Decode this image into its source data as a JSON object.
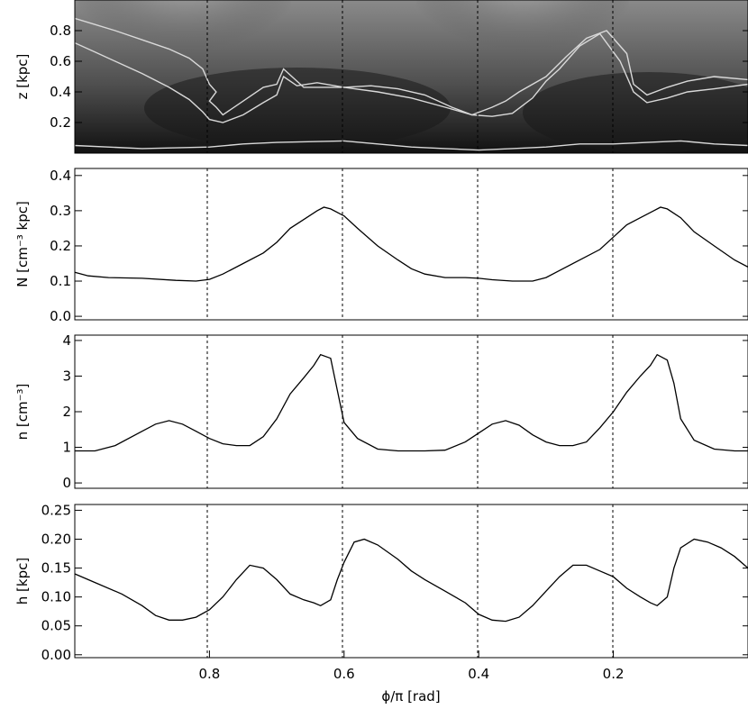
{
  "chart_data": [
    {
      "type": "heatmap",
      "panel": "top",
      "ylabel": "z [kpc]",
      "yticks": [
        "0.2",
        "0.4",
        "0.6",
        "0.8"
      ],
      "ytick_values": [
        0.2,
        0.4,
        0.6,
        0.8
      ],
      "ylim": [
        0.0,
        1.0
      ],
      "xlim": [
        1.0,
        0.0
      ],
      "dashed_x": [
        0.8,
        0.6,
        0.4,
        0.2
      ],
      "colormap": "grayscale",
      "contour_color": "#d9d9d9",
      "contours": [
        [
          [
            1.0,
            0.88
          ],
          [
            0.97,
            0.84
          ],
          [
            0.94,
            0.8
          ],
          [
            0.9,
            0.74
          ],
          [
            0.86,
            0.68
          ],
          [
            0.83,
            0.62
          ],
          [
            0.81,
            0.55
          ],
          [
            0.8,
            0.45
          ],
          [
            0.79,
            0.4
          ],
          [
            0.8,
            0.34
          ],
          [
            0.79,
            0.3
          ],
          [
            0.78,
            0.25
          ],
          [
            0.75,
            0.34
          ],
          [
            0.72,
            0.43
          ],
          [
            0.7,
            0.45
          ],
          [
            0.69,
            0.55
          ],
          [
            0.66,
            0.43
          ],
          [
            0.6,
            0.43
          ],
          [
            0.55,
            0.4
          ],
          [
            0.5,
            0.36
          ],
          [
            0.45,
            0.3
          ],
          [
            0.41,
            0.25
          ],
          [
            0.38,
            0.3
          ],
          [
            0.36,
            0.34
          ],
          [
            0.34,
            0.4
          ],
          [
            0.3,
            0.5
          ],
          [
            0.27,
            0.63
          ],
          [
            0.24,
            0.75
          ],
          [
            0.21,
            0.8
          ],
          [
            0.18,
            0.65
          ],
          [
            0.17,
            0.45
          ],
          [
            0.15,
            0.38
          ],
          [
            0.12,
            0.43
          ],
          [
            0.09,
            0.47
          ],
          [
            0.05,
            0.5
          ],
          [
            0.0,
            0.48
          ]
        ],
        [
          [
            1.0,
            0.72
          ],
          [
            0.97,
            0.66
          ],
          [
            0.94,
            0.6
          ],
          [
            0.9,
            0.52
          ],
          [
            0.86,
            0.43
          ],
          [
            0.83,
            0.35
          ],
          [
            0.81,
            0.27
          ],
          [
            0.8,
            0.22
          ],
          [
            0.78,
            0.2
          ],
          [
            0.75,
            0.25
          ],
          [
            0.72,
            0.33
          ],
          [
            0.7,
            0.38
          ],
          [
            0.69,
            0.5
          ],
          [
            0.67,
            0.44
          ],
          [
            0.64,
            0.46
          ],
          [
            0.6,
            0.43
          ],
          [
            0.56,
            0.44
          ],
          [
            0.52,
            0.42
          ],
          [
            0.48,
            0.38
          ],
          [
            0.44,
            0.3
          ],
          [
            0.41,
            0.25
          ],
          [
            0.38,
            0.24
          ],
          [
            0.35,
            0.26
          ],
          [
            0.32,
            0.36
          ],
          [
            0.3,
            0.47
          ],
          [
            0.28,
            0.55
          ],
          [
            0.25,
            0.7
          ],
          [
            0.22,
            0.78
          ],
          [
            0.19,
            0.6
          ],
          [
            0.17,
            0.4
          ],
          [
            0.15,
            0.33
          ],
          [
            0.12,
            0.36
          ],
          [
            0.09,
            0.4
          ],
          [
            0.05,
            0.42
          ],
          [
            0.0,
            0.45
          ]
        ],
        [
          [
            1.0,
            0.05
          ],
          [
            0.9,
            0.03
          ],
          [
            0.8,
            0.04
          ],
          [
            0.75,
            0.06
          ],
          [
            0.7,
            0.07
          ],
          [
            0.6,
            0.08
          ],
          [
            0.55,
            0.06
          ],
          [
            0.5,
            0.04
          ],
          [
            0.45,
            0.03
          ],
          [
            0.4,
            0.02
          ],
          [
            0.35,
            0.03
          ],
          [
            0.3,
            0.04
          ],
          [
            0.25,
            0.06
          ],
          [
            0.2,
            0.06
          ],
          [
            0.15,
            0.07
          ],
          [
            0.1,
            0.08
          ],
          [
            0.05,
            0.06
          ],
          [
            0.0,
            0.05
          ]
        ]
      ]
    },
    {
      "type": "line",
      "panel": "N",
      "ylabel": "N [cm⁻³ kpc]",
      "yticks": [
        "0.0",
        "0.1",
        "0.2",
        "0.3",
        "0.4"
      ],
      "ytick_values": [
        0.0,
        0.1,
        0.2,
        0.3,
        0.4
      ],
      "ylim": [
        -0.01,
        0.42
      ],
      "xlim": [
        1.0,
        0.0
      ],
      "dashed_x": [
        0.8,
        0.6,
        0.4,
        0.2
      ],
      "x": [
        1.0,
        0.98,
        0.95,
        0.9,
        0.85,
        0.82,
        0.8,
        0.78,
        0.75,
        0.72,
        0.7,
        0.68,
        0.66,
        0.64,
        0.63,
        0.62,
        0.6,
        0.58,
        0.55,
        0.52,
        0.5,
        0.48,
        0.45,
        0.42,
        0.4,
        0.38,
        0.35,
        0.32,
        0.3,
        0.28,
        0.25,
        0.22,
        0.2,
        0.18,
        0.16,
        0.14,
        0.13,
        0.12,
        0.1,
        0.08,
        0.05,
        0.02,
        0.0
      ],
      "values": [
        0.125,
        0.115,
        0.11,
        0.108,
        0.102,
        0.1,
        0.105,
        0.12,
        0.15,
        0.18,
        0.21,
        0.25,
        0.275,
        0.3,
        0.31,
        0.305,
        0.285,
        0.25,
        0.2,
        0.16,
        0.135,
        0.12,
        0.11,
        0.11,
        0.108,
        0.104,
        0.1,
        0.1,
        0.11,
        0.13,
        0.16,
        0.19,
        0.225,
        0.26,
        0.28,
        0.3,
        0.31,
        0.305,
        0.28,
        0.24,
        0.2,
        0.16,
        0.14
      ]
    },
    {
      "type": "line",
      "panel": "n",
      "ylabel": "n [cm⁻³]",
      "yticks": [
        "0",
        "1",
        "2",
        "3",
        "4"
      ],
      "ytick_values": [
        0,
        1,
        2,
        3,
        4
      ],
      "ylim": [
        -0.15,
        4.15
      ],
      "xlim": [
        1.0,
        0.0
      ],
      "dashed_x": [
        0.8,
        0.6,
        0.4,
        0.2
      ],
      "x": [
        1.0,
        0.97,
        0.94,
        0.9,
        0.88,
        0.86,
        0.84,
        0.82,
        0.8,
        0.78,
        0.76,
        0.74,
        0.72,
        0.7,
        0.68,
        0.66,
        0.645,
        0.635,
        0.62,
        0.61,
        0.6,
        0.58,
        0.55,
        0.52,
        0.5,
        0.48,
        0.45,
        0.42,
        0.4,
        0.38,
        0.36,
        0.34,
        0.32,
        0.3,
        0.28,
        0.26,
        0.24,
        0.22,
        0.2,
        0.18,
        0.16,
        0.145,
        0.135,
        0.12,
        0.11,
        0.1,
        0.08,
        0.05,
        0.02,
        0.0
      ],
      "values": [
        0.9,
        0.9,
        1.05,
        1.45,
        1.65,
        1.75,
        1.65,
        1.45,
        1.25,
        1.1,
        1.05,
        1.05,
        1.3,
        1.8,
        2.5,
        2.95,
        3.3,
        3.6,
        3.5,
        2.6,
        1.7,
        1.25,
        0.95,
        0.9,
        0.9,
        0.9,
        0.92,
        1.15,
        1.4,
        1.65,
        1.75,
        1.62,
        1.35,
        1.15,
        1.05,
        1.05,
        1.15,
        1.55,
        2.0,
        2.55,
        3.0,
        3.3,
        3.6,
        3.45,
        2.8,
        1.8,
        1.2,
        0.95,
        0.9,
        0.9
      ]
    },
    {
      "type": "line",
      "panel": "h",
      "ylabel": "h [kpc]",
      "xlabel": "ϕ/π [rad]",
      "xticks": [
        "0.8",
        "0.6",
        "0.4",
        "0.2"
      ],
      "xtick_values": [
        0.8,
        0.6,
        0.4,
        0.2
      ],
      "yticks": [
        "0.00",
        "0.05",
        "0.10",
        "0.15",
        "0.20",
        "0.25"
      ],
      "ytick_values": [
        0.0,
        0.05,
        0.1,
        0.15,
        0.2,
        0.25
      ],
      "ylim": [
        -0.005,
        0.26
      ],
      "xlim": [
        1.0,
        0.0
      ],
      "dashed_x": [
        0.8,
        0.6,
        0.4,
        0.2
      ],
      "x": [
        1.0,
        0.97,
        0.93,
        0.9,
        0.88,
        0.86,
        0.84,
        0.82,
        0.8,
        0.78,
        0.76,
        0.74,
        0.72,
        0.7,
        0.68,
        0.66,
        0.645,
        0.635,
        0.62,
        0.61,
        0.6,
        0.585,
        0.57,
        0.55,
        0.52,
        0.5,
        0.48,
        0.45,
        0.42,
        0.4,
        0.38,
        0.36,
        0.34,
        0.32,
        0.3,
        0.28,
        0.26,
        0.24,
        0.22,
        0.2,
        0.18,
        0.16,
        0.145,
        0.135,
        0.12,
        0.11,
        0.1,
        0.08,
        0.06,
        0.04,
        0.02,
        0.0
      ],
      "values": [
        0.14,
        0.125,
        0.105,
        0.085,
        0.068,
        0.06,
        0.06,
        0.065,
        0.078,
        0.1,
        0.13,
        0.155,
        0.15,
        0.13,
        0.105,
        0.095,
        0.09,
        0.085,
        0.095,
        0.13,
        0.16,
        0.195,
        0.2,
        0.19,
        0.165,
        0.145,
        0.13,
        0.11,
        0.09,
        0.07,
        0.06,
        0.058,
        0.065,
        0.085,
        0.11,
        0.135,
        0.155,
        0.155,
        0.145,
        0.135,
        0.115,
        0.1,
        0.09,
        0.085,
        0.1,
        0.15,
        0.185,
        0.2,
        0.195,
        0.185,
        0.17,
        0.15
      ]
    }
  ]
}
